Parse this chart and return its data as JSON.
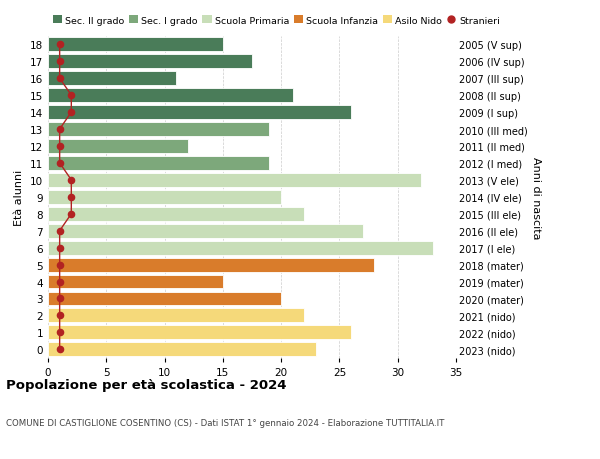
{
  "ages": [
    18,
    17,
    16,
    15,
    14,
    13,
    12,
    11,
    10,
    9,
    8,
    7,
    6,
    5,
    4,
    3,
    2,
    1,
    0
  ],
  "years_labels": [
    "2005 (V sup)",
    "2006 (IV sup)",
    "2007 (III sup)",
    "2008 (II sup)",
    "2009 (I sup)",
    "2010 (III med)",
    "2011 (II med)",
    "2012 (I med)",
    "2013 (V ele)",
    "2014 (IV ele)",
    "2015 (III ele)",
    "2016 (II ele)",
    "2017 (I ele)",
    "2018 (mater)",
    "2019 (mater)",
    "2020 (mater)",
    "2021 (nido)",
    "2022 (nido)",
    "2023 (nido)"
  ],
  "values": [
    15,
    17.5,
    11,
    21,
    26,
    19,
    12,
    19,
    32,
    20,
    22,
    27,
    33,
    28,
    15,
    20,
    22,
    26,
    23
  ],
  "colors": [
    "#4a7c59",
    "#4a7c59",
    "#4a7c59",
    "#4a7c59",
    "#4a7c59",
    "#7da87b",
    "#7da87b",
    "#7da87b",
    "#c8deb8",
    "#c8deb8",
    "#c8deb8",
    "#c8deb8",
    "#c8deb8",
    "#d97c2b",
    "#d97c2b",
    "#d97c2b",
    "#f5d97a",
    "#f5d97a",
    "#f5d97a"
  ],
  "stranieri": [
    1,
    1,
    1,
    2,
    2,
    1,
    1,
    1,
    2,
    2,
    2,
    1,
    1,
    1,
    1,
    1,
    1,
    1,
    1
  ],
  "legend_labels": [
    "Sec. II grado",
    "Sec. I grado",
    "Scuola Primaria",
    "Scuola Infanzia",
    "Asilo Nido",
    "Stranieri"
  ],
  "legend_colors": [
    "#4a7c59",
    "#7da87b",
    "#c8deb8",
    "#d97c2b",
    "#f5d97a",
    "#b22222"
  ],
  "title": "Popolazione per età scolastica - 2024",
  "subtitle": "COMUNE DI CASTIGLIONE COSENTINO (CS) - Dati ISTAT 1° gennaio 2024 - Elaborazione TUTTITALIA.IT",
  "ylabel_left": "Età alunni",
  "ylabel_right": "Anni di nascita",
  "xlim": [
    0,
    35
  ],
  "background_color": "#ffffff",
  "grid_color": "#cccccc"
}
